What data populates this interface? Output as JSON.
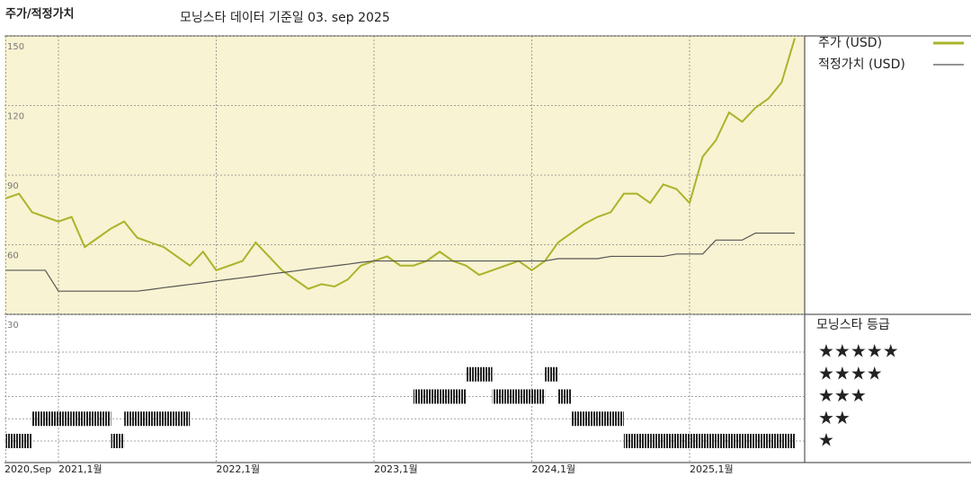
{
  "chart_data": {
    "type": "line",
    "title": "주가/적정가치",
    "subtitle": "모닝스타 데이터 기준일 03. sep 2025",
    "x": [
      "2020-09",
      "2020-10",
      "2020-11",
      "2020-12",
      "2021-01",
      "2021-02",
      "2021-03",
      "2021-04",
      "2021-05",
      "2021-06",
      "2021-07",
      "2021-08",
      "2021-09",
      "2021-10",
      "2021-11",
      "2021-12",
      "2022-01",
      "2022-02",
      "2022-03",
      "2022-04",
      "2022-05",
      "2022-06",
      "2022-07",
      "2022-08",
      "2022-09",
      "2022-10",
      "2022-11",
      "2022-12",
      "2023-01",
      "2023-02",
      "2023-03",
      "2023-04",
      "2023-05",
      "2023-06",
      "2023-07",
      "2023-08",
      "2023-09",
      "2023-10",
      "2023-11",
      "2023-12",
      "2024-01",
      "2024-02",
      "2024-03",
      "2024-04",
      "2024-05",
      "2024-06",
      "2024-07",
      "2024-08",
      "2024-09",
      "2024-10",
      "2024-11",
      "2024-12",
      "2025-01",
      "2025-02",
      "2025-03",
      "2025-04",
      "2025-05",
      "2025-06",
      "2025-07",
      "2025-08",
      "2025-09"
    ],
    "series": [
      {
        "name": "주가 (USD)",
        "color": "#a9b42b",
        "values": [
          80,
          82,
          74,
          72,
          70,
          72,
          59,
          63,
          67,
          70,
          63,
          61,
          59,
          55,
          51,
          57,
          49,
          51,
          53,
          61,
          55,
          49,
          45,
          41,
          43,
          42,
          45,
          51,
          53,
          55,
          51,
          51,
          53,
          57,
          53,
          51,
          47,
          49,
          51,
          53,
          49,
          53,
          61,
          65,
          69,
          72,
          74,
          82,
          82,
          78,
          86,
          84,
          78,
          98,
          105,
          117,
          113,
          119,
          123,
          130,
          149
        ]
      },
      {
        "name": "적정가치 (USD)",
        "color": "#555555",
        "values": [
          49,
          49,
          49,
          49,
          40,
          40,
          40,
          40,
          40,
          40,
          40,
          40.7,
          41.5,
          42.2,
          42.9,
          43.6,
          44.4,
          45.1,
          45.8,
          46.5,
          47.3,
          48,
          48.7,
          49.5,
          50.2,
          50.9,
          51.6,
          52.4,
          53,
          53,
          53,
          53,
          53,
          53,
          53,
          53,
          53,
          53,
          53,
          53,
          53,
          53,
          54,
          54,
          54,
          54,
          55,
          55,
          55,
          55,
          55,
          56,
          56,
          56,
          62,
          62,
          62,
          65,
          65,
          65,
          65
        ]
      }
    ],
    "xlim": [
      "2020-09",
      "2025-09"
    ],
    "xticks": [
      {
        "value": "2020-09",
        "label": "2020,Sep"
      },
      {
        "value": "2021-01",
        "label": "2021,1월"
      },
      {
        "value": "2022-01",
        "label": "2022,1월"
      },
      {
        "value": "2023-01",
        "label": "2023,1월"
      },
      {
        "value": "2024-01",
        "label": "2024,1월"
      },
      {
        "value": "2025-01",
        "label": "2025,1월"
      }
    ],
    "ylim": [
      30,
      150
    ],
    "yticks": [
      30,
      60,
      90,
      120,
      150
    ],
    "grid": true,
    "rating": {
      "title": "모닝스타 등급",
      "levels": [
        "★★★★★",
        "★★★★",
        "★★★",
        "★★",
        "★"
      ],
      "values": [
        1,
        1,
        2,
        2,
        2,
        2,
        2,
        2,
        1,
        2,
        2,
        2,
        2,
        2,
        null,
        null,
        null,
        null,
        null,
        null,
        null,
        null,
        null,
        null,
        null,
        null,
        null,
        null,
        null,
        null,
        null,
        3,
        3,
        3,
        3,
        4,
        4,
        3,
        3,
        3,
        3,
        4,
        3,
        2,
        2,
        2,
        2,
        1,
        1,
        1,
        1,
        1,
        1,
        1,
        1,
        1,
        1,
        1,
        1,
        1,
        1
      ]
    }
  }
}
